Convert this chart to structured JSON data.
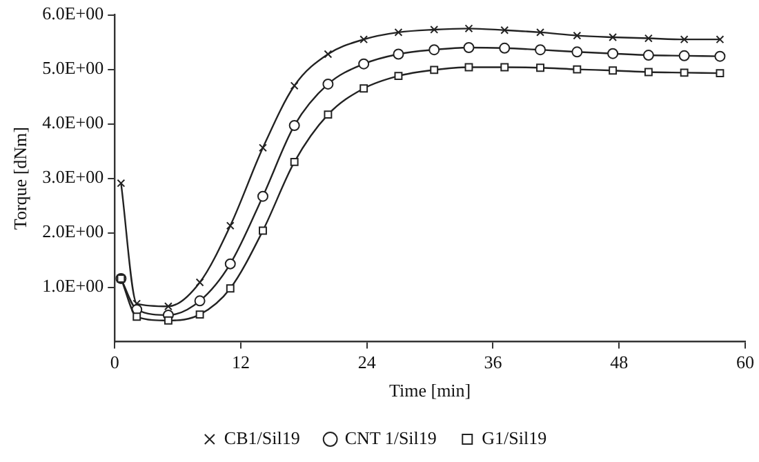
{
  "chart_data": {
    "type": "line",
    "xlabel": "Time [min]",
    "ylabel": "Torque [dNm]",
    "x": [
      0.6,
      2.1,
      5.1,
      8.1,
      11.0,
      14.1,
      17.1,
      20.3,
      23.7,
      27.0,
      30.4,
      33.7,
      37.1,
      40.5,
      44.0,
      47.4,
      50.8,
      54.2,
      57.6
    ],
    "xlim": [
      0,
      60
    ],
    "xticks": [
      0,
      12,
      24,
      36,
      48,
      60
    ],
    "ylim": [
      0,
      6
    ],
    "yticks": [
      {
        "value": 1,
        "label": "1.0E+00"
      },
      {
        "value": 2,
        "label": "2.0E+00"
      },
      {
        "value": 3,
        "label": "3.0E+00"
      },
      {
        "value": 4,
        "label": "4.0E+00"
      },
      {
        "value": 5,
        "label": "5.0E+00"
      },
      {
        "value": 6,
        "label": "6.0E+00"
      }
    ],
    "grid": false,
    "legend": "bottom",
    "line_style": "solid",
    "series": [
      {
        "name": "CB1/Sil19",
        "color": "#222222",
        "marker": "cross",
        "values": [
          2.91,
          0.7,
          0.65,
          1.09,
          2.13,
          3.56,
          4.7,
          5.28,
          5.55,
          5.68,
          5.73,
          5.75,
          5.72,
          5.68,
          5.62,
          5.59,
          5.57,
          5.55,
          5.55
        ]
      },
      {
        "name": "CNT 1/Sil19",
        "color": "#222222",
        "marker": "circle",
        "values": [
          1.16,
          0.59,
          0.49,
          0.75,
          1.43,
          2.67,
          3.97,
          4.73,
          5.1,
          5.28,
          5.36,
          5.4,
          5.39,
          5.36,
          5.32,
          5.29,
          5.26,
          5.25,
          5.24
        ]
      },
      {
        "name": "G1/Sil19",
        "color": "#222222",
        "marker": "square",
        "values": [
          1.16,
          0.46,
          0.39,
          0.5,
          0.98,
          2.04,
          3.3,
          4.17,
          4.65,
          4.88,
          4.99,
          5.04,
          5.04,
          5.03,
          5.0,
          4.98,
          4.95,
          4.94,
          4.93
        ]
      }
    ]
  }
}
